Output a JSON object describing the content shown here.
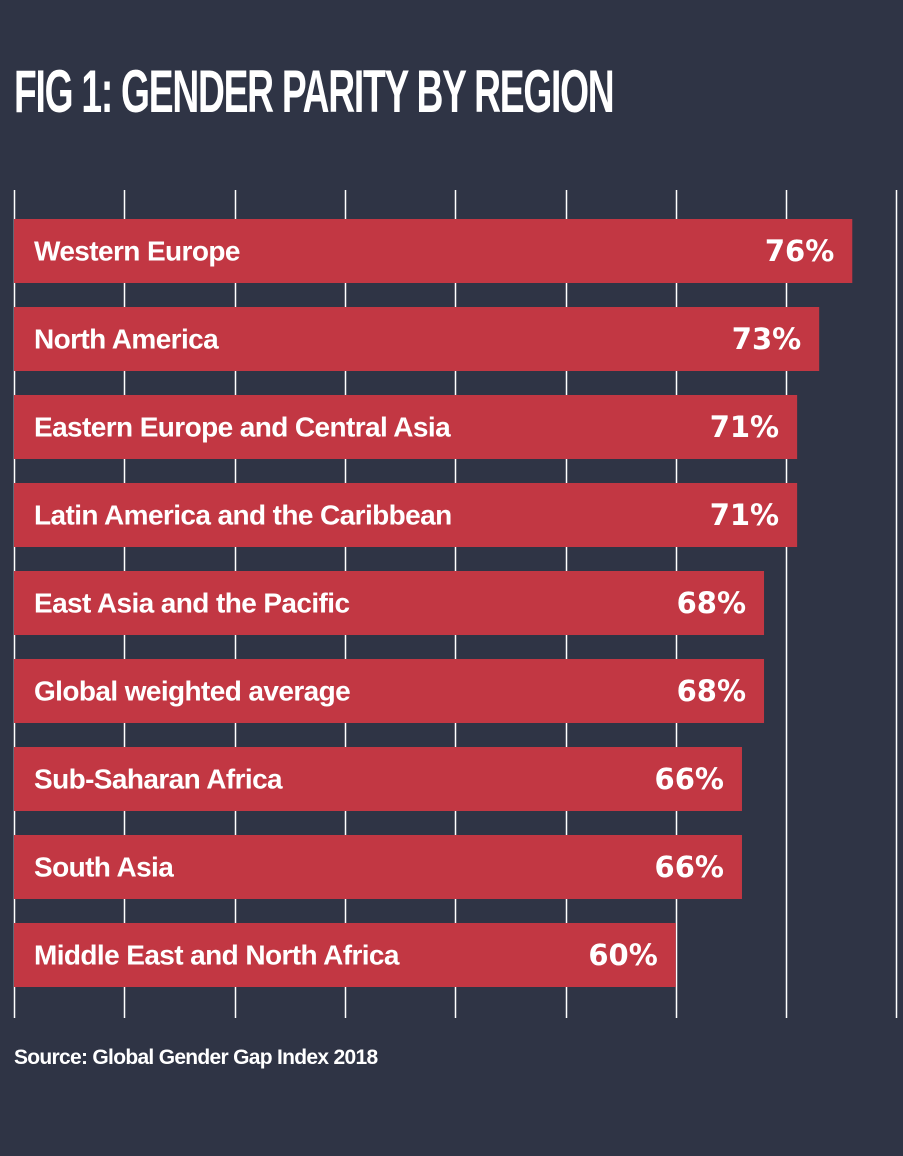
{
  "chart_data": {
    "type": "bar",
    "orientation": "horizontal",
    "title": "FIG 1: GENDER PARITY BY REGION",
    "categories": [
      "Western Europe",
      "North America",
      "Eastern Europe and Central Asia",
      "Latin America and the Caribbean",
      "East Asia and the Pacific",
      "Global weighted average",
      "Sub-Saharan Africa",
      "South Asia",
      "Middle East and North Africa"
    ],
    "values": [
      76,
      73,
      71,
      71,
      68,
      68,
      66,
      66,
      60
    ],
    "value_labels": [
      "76%",
      "73%",
      "71%",
      "71%",
      "68%",
      "68%",
      "66%",
      "66%",
      "60%"
    ],
    "xlim": [
      0,
      80
    ],
    "grid": true,
    "source": "Source: Global Gender Gap Index 2018"
  },
  "colors": {
    "background": "#2f3445",
    "bar": "#c23743",
    "text": "#ffffff",
    "grid": "#ffffff"
  }
}
